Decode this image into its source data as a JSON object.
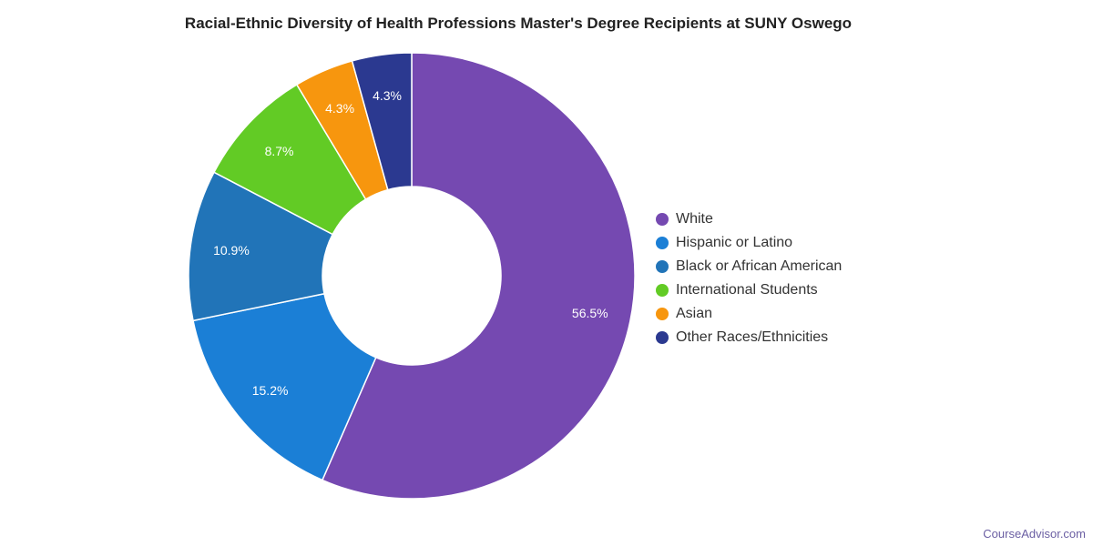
{
  "chart_data": {
    "type": "pie",
    "title": "Racial-Ethnic Diversity of Health Professions Master's Degree Recipients at SUNY Oswego",
    "categories": [
      "White",
      "Hispanic or Latino",
      "Black or African American",
      "International Students",
      "Asian",
      "Other Races/Ethnicities"
    ],
    "values": [
      56.5,
      15.2,
      10.9,
      8.7,
      4.3,
      4.3
    ],
    "labels": [
      "56.5%",
      "15.2%",
      "10.9%",
      "8.7%",
      "4.3%",
      "4.3%"
    ],
    "colors": [
      "#7549b1",
      "#1b7fd6",
      "#2174b8",
      "#62cb25",
      "#f7960e",
      "#2b3990"
    ],
    "legend_position": "right",
    "donut": true
  },
  "watermark": "CourseAdvisor.com"
}
